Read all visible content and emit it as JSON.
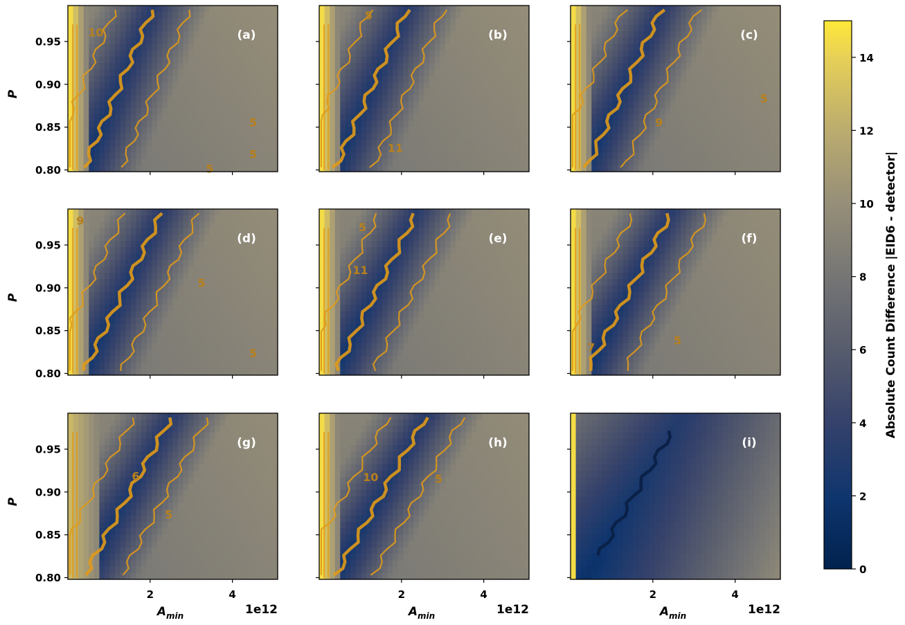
{
  "chart_data": {
    "type": "heatmap",
    "xlabel": "A",
    "xlabel_sub": "min",
    "ylabel": "P",
    "x_offset_label": "1e12",
    "xlim": [
      0,
      5.1
    ],
    "ylim": [
      0.798,
      0.992
    ],
    "x_ticks": [
      2,
      4
    ],
    "x_tick_labels": [
      "2",
      "4"
    ],
    "y_ticks": [
      0.8,
      0.85,
      0.9,
      0.95
    ],
    "y_tick_labels": [
      "0.80",
      "0.85",
      "0.90",
      "0.95"
    ],
    "colorbar": {
      "label": "Absolute Count Difference |EID6 - detector|",
      "range": [
        0,
        15
      ],
      "ticks": [
        0,
        2,
        4,
        6,
        8,
        10,
        12,
        14
      ],
      "tick_labels": [
        "0",
        "2",
        "4",
        "6",
        "8",
        "10",
        "12",
        "14"
      ],
      "colormap": "cividis"
    },
    "panels": [
      {
        "id": "a",
        "tag": "(a)",
        "contour_labels": [
          {
            "text": "10",
            "x": 0.68,
            "y": 0.96
          },
          {
            "text": "5",
            "x": 4.5,
            "y": 0.855
          },
          {
            "text": "5",
            "x": 4.5,
            "y": 0.818
          },
          {
            "text": "5",
            "x": 3.45,
            "y": 0.801
          }
        ]
      },
      {
        "id": "b",
        "tag": "(b)",
        "contour_labels": [
          {
            "text": "5",
            "x": 1.2,
            "y": 0.98
          },
          {
            "text": "11",
            "x": 1.85,
            "y": 0.825
          }
        ]
      },
      {
        "id": "c",
        "tag": "(c)",
        "contour_labels": [
          {
            "text": "9",
            "x": 2.15,
            "y": 0.855
          },
          {
            "text": "5",
            "x": 4.7,
            "y": 0.883
          }
        ]
      },
      {
        "id": "d",
        "tag": "(d)",
        "contour_labels": [
          {
            "text": "9",
            "x": 0.3,
            "y": 0.978
          },
          {
            "text": "5",
            "x": 3.25,
            "y": 0.905
          },
          {
            "text": "5",
            "x": 4.5,
            "y": 0.823
          }
        ]
      },
      {
        "id": "e",
        "tag": "(e)",
        "contour_labels": [
          {
            "text": "5",
            "x": 1.05,
            "y": 0.97
          },
          {
            "text": "11",
            "x": 1.0,
            "y": 0.92
          }
        ]
      },
      {
        "id": "f",
        "tag": "(f)",
        "contour_labels": [
          {
            "text": "5",
            "x": 2.6,
            "y": 0.838
          },
          {
            "text": "7",
            "x": 0.5,
            "y": 0.83
          }
        ]
      },
      {
        "id": "g",
        "tag": "(g)",
        "contour_labels": [
          {
            "text": "6",
            "x": 1.65,
            "y": 0.918
          },
          {
            "text": "5",
            "x": 2.45,
            "y": 0.873
          }
        ]
      },
      {
        "id": "h",
        "tag": "(h)",
        "contour_labels": [
          {
            "text": "10",
            "x": 1.25,
            "y": 0.917
          },
          {
            "text": "5",
            "x": 2.9,
            "y": 0.915
          }
        ]
      },
      {
        "id": "i",
        "tag": "(i)",
        "contour_labels": []
      }
    ]
  },
  "colors": {
    "contour": "#e09a18",
    "contour_dark": "#b8801c",
    "contour_i": "#0a1f44"
  }
}
